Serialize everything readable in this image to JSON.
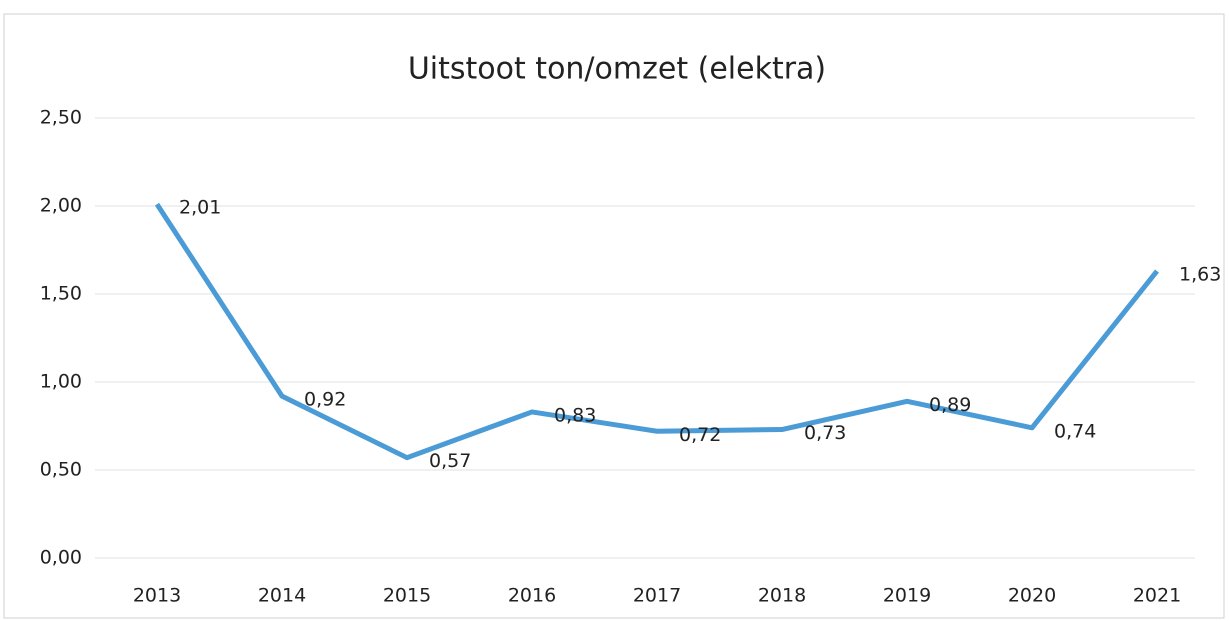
{
  "chart_data": {
    "type": "line",
    "title": "Uitstoot ton/omzet (elektra)",
    "categories": [
      "2013",
      "2014",
      "2015",
      "2016",
      "2017",
      "2018",
      "2019",
      "2020",
      "2021"
    ],
    "series": [
      {
        "name": "Uitstoot ton/omzet (elektra)",
        "color": "#4a9bd6",
        "values": [
          2.01,
          0.92,
          0.57,
          0.83,
          0.72,
          0.73,
          0.89,
          0.74,
          1.63
        ],
        "value_labels": [
          "2,01",
          "0,92",
          "0,57",
          "0,83",
          "0,72",
          "0,73",
          "0,89",
          "0,74",
          "1,63"
        ]
      }
    ],
    "ylim": [
      0,
      2.5
    ],
    "yticks": [
      {
        "value": 0,
        "label": "0,00"
      },
      {
        "value": 0.5,
        "label": "0,50"
      },
      {
        "value": 1,
        "label": "1,00"
      },
      {
        "value": 1.5,
        "label": "1,50"
      },
      {
        "value": 2,
        "label": "2,00"
      },
      {
        "value": 2.5,
        "label": "2,50"
      }
    ],
    "grid": true
  }
}
